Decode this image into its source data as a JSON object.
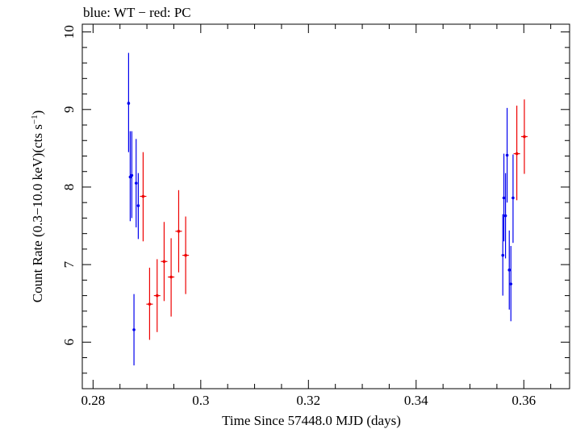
{
  "chart_data": {
    "type": "scatter",
    "title": "blue: WT − red: PC",
    "xlabel": "Time Since 57448.0 MJD (days)",
    "ylabel_main": "Count Rate (0.3−10.0 keV)(cts s",
    "ylabel_sup": "−1",
    "ylabel_close": ")",
    "xlim": [
      0.278,
      0.3685
    ],
    "ylim": [
      5.4,
      10.1
    ],
    "xticks": [
      0.28,
      0.3,
      0.32,
      0.34,
      0.36
    ],
    "xtick_labels": [
      "0.28",
      "0.3",
      "0.32",
      "0.34",
      "0.36"
    ],
    "yticks": [
      6,
      7,
      8,
      9,
      10
    ],
    "ytick_labels": [
      "6",
      "7",
      "8",
      "9",
      "10"
    ],
    "grid": false,
    "series": [
      {
        "color": "#0000ee",
        "points": [
          {
            "x": 0.2866,
            "y": 9.08,
            "xerr": 0.0001,
            "ylo": 8.45,
            "yhi": 9.73
          },
          {
            "x": 0.2869,
            "y": 8.13,
            "xerr": 0.0001,
            "ylo": 7.56,
            "yhi": 8.72
          },
          {
            "x": 0.2872,
            "y": 8.15,
            "xerr": 0.0001,
            "ylo": 7.6,
            "yhi": 8.72
          },
          {
            "x": 0.2876,
            "y": 6.16,
            "xerr": 0.0001,
            "ylo": 5.7,
            "yhi": 6.62
          },
          {
            "x": 0.288,
            "y": 8.05,
            "xerr": 0.0001,
            "ylo": 7.48,
            "yhi": 8.62
          },
          {
            "x": 0.2884,
            "y": 7.76,
            "xerr": 0.0002,
            "ylo": 7.33,
            "yhi": 8.18
          },
          {
            "x": 0.3561,
            "y": 7.12,
            "xerr": 0.0001,
            "ylo": 6.6,
            "yhi": 7.65
          },
          {
            "x": 0.3563,
            "y": 7.86,
            "xerr": 0.0001,
            "ylo": 7.3,
            "yhi": 8.43
          },
          {
            "x": 0.3566,
            "y": 7.63,
            "xerr": 0.0001,
            "ylo": 7.08,
            "yhi": 8.18
          },
          {
            "x": 0.3569,
            "y": 8.41,
            "xerr": 0.0001,
            "ylo": 7.8,
            "yhi": 9.02
          },
          {
            "x": 0.3573,
            "y": 6.93,
            "xerr": 0.0001,
            "ylo": 6.42,
            "yhi": 7.44
          },
          {
            "x": 0.3576,
            "y": 6.75,
            "xerr": 0.0001,
            "ylo": 6.27,
            "yhi": 7.24
          },
          {
            "x": 0.358,
            "y": 7.86,
            "xerr": 0.0002,
            "ylo": 7.28,
            "yhi": 8.42
          }
        ]
      },
      {
        "color": "#ee0000",
        "points": [
          {
            "x": 0.2893,
            "y": 7.88,
            "xerr": 0.0006,
            "ylo": 7.3,
            "yhi": 8.45
          },
          {
            "x": 0.2905,
            "y": 6.49,
            "xerr": 0.0006,
            "ylo": 6.03,
            "yhi": 6.96
          },
          {
            "x": 0.2919,
            "y": 6.6,
            "xerr": 0.0006,
            "ylo": 6.13,
            "yhi": 7.07
          },
          {
            "x": 0.2932,
            "y": 7.04,
            "xerr": 0.0006,
            "ylo": 6.53,
            "yhi": 7.55
          },
          {
            "x": 0.2945,
            "y": 6.84,
            "xerr": 0.0006,
            "ylo": 6.33,
            "yhi": 7.34
          },
          {
            "x": 0.2959,
            "y": 7.43,
            "xerr": 0.0006,
            "ylo": 6.9,
            "yhi": 7.96
          },
          {
            "x": 0.2972,
            "y": 7.12,
            "xerr": 0.0006,
            "ylo": 6.62,
            "yhi": 7.62
          },
          {
            "x": 0.3587,
            "y": 8.43,
            "xerr": 0.0006,
            "ylo": 7.83,
            "yhi": 9.05
          },
          {
            "x": 0.3601,
            "y": 8.65,
            "xerr": 0.0006,
            "ylo": 8.17,
            "yhi": 9.13
          }
        ]
      }
    ]
  }
}
